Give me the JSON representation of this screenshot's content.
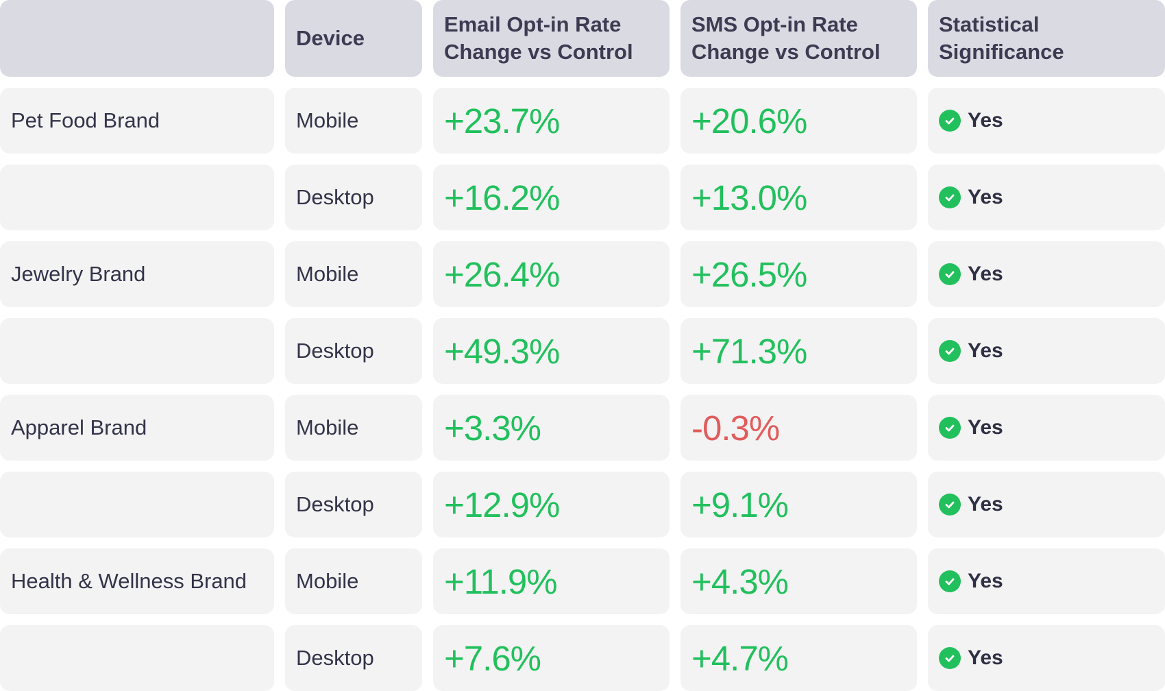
{
  "chart_data": {
    "type": "table",
    "columns": [
      "",
      "Device",
      "Email Opt-in Rate Change vs Control",
      "SMS Opt-in Rate Change vs Control",
      "Statistical Significance"
    ],
    "header_lines": {
      "blank": "",
      "device": "Device",
      "email": [
        "Email Opt-in Rate",
        "Change vs Control"
      ],
      "sms": [
        "SMS Opt-in Rate",
        "Change vs Control"
      ],
      "sig": [
        "Statistical",
        "Significance"
      ]
    },
    "rows": [
      {
        "brand": "Pet Food Brand",
        "device": "Mobile",
        "email": "+23.7%",
        "sms": "+20.6%",
        "significance": "Yes"
      },
      {
        "brand": "",
        "device": "Desktop",
        "email": "+16.2%",
        "sms": "+13.0%",
        "significance": "Yes"
      },
      {
        "brand": "Jewelry Brand",
        "device": "Mobile",
        "email": "+26.4%",
        "sms": "+26.5%",
        "significance": "Yes"
      },
      {
        "brand": "",
        "device": "Desktop",
        "email": "+49.3%",
        "sms": "+71.3%",
        "significance": "Yes"
      },
      {
        "brand": "Apparel Brand",
        "device": "Mobile",
        "email": "+3.3%",
        "sms": "-0.3%",
        "significance": "Yes"
      },
      {
        "brand": "",
        "device": "Desktop",
        "email": "+12.9%",
        "sms": "+9.1%",
        "significance": "Yes"
      },
      {
        "brand": "Health & Wellness Brand",
        "device": "Mobile",
        "email": "+11.9%",
        "sms": "+4.3%",
        "significance": "Yes"
      },
      {
        "brand": "",
        "device": "Desktop",
        "email": "+7.6%",
        "sms": "+4.7%",
        "significance": "Yes"
      }
    ],
    "colors": {
      "header_bg": "#dadae3",
      "cell_bg": "#f3f3f3",
      "positive": "#22c05d",
      "negative": "#e15c5c",
      "text": "#2f2f45"
    },
    "icons": {
      "significance": "check-circle-icon"
    }
  }
}
